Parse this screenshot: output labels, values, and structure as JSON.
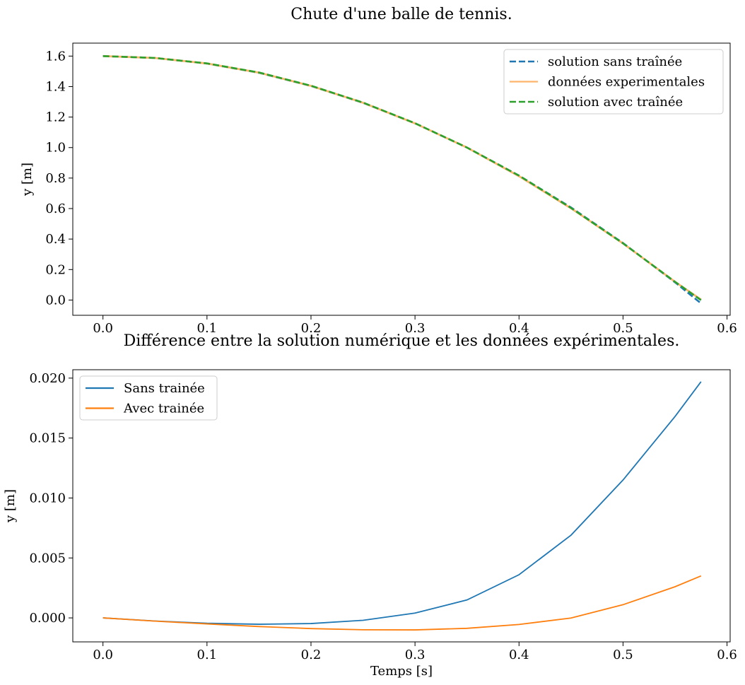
{
  "colors": {
    "blue": "#1f77b4",
    "orange": "#ff7f0e",
    "green": "#2ca02c",
    "light_orange": "#ffb36b"
  },
  "chart_data": [
    {
      "type": "line",
      "title": "Chute d'une balle de tennis.",
      "xlabel": "",
      "ylabel": "y [m]",
      "xlim": [
        -0.029,
        0.603
      ],
      "ylim": [
        -0.1,
        1.685
      ],
      "xticks": [
        0.0,
        0.1,
        0.2,
        0.3,
        0.4,
        0.5,
        0.6
      ],
      "xtick_labels": [
        "0.0",
        "0.1",
        "0.2",
        "0.3",
        "0.4",
        "0.5",
        "0.6"
      ],
      "yticks": [
        0.0,
        0.2,
        0.4,
        0.6,
        0.8,
        1.0,
        1.2,
        1.4,
        1.6
      ],
      "ytick_labels": [
        "0.0",
        "0.2",
        "0.4",
        "0.6",
        "0.8",
        "1.0",
        "1.2",
        "1.4",
        "1.6"
      ],
      "grid": false,
      "legend_position": "upper right",
      "series": [
        {
          "name": "solution sans traînée",
          "style": "dashed",
          "color": "#1f77b4",
          "x": [
            0.0,
            0.05,
            0.1,
            0.15,
            0.2,
            0.25,
            0.3,
            0.35,
            0.4,
            0.45,
            0.5,
            0.55,
            0.575
          ],
          "y": [
            1.6,
            1.588,
            1.551,
            1.49,
            1.404,
            1.293,
            1.159,
            1.0,
            0.816,
            0.607,
            0.374,
            0.116,
            -0.022
          ]
        },
        {
          "name": "données experimentales",
          "style": "solid",
          "color": "#ffb36b",
          "x": [
            0.0,
            0.05,
            0.1,
            0.15,
            0.2,
            0.25,
            0.3,
            0.35,
            0.4,
            0.45,
            0.5,
            0.55,
            0.575
          ],
          "y": [
            1.6,
            1.5875,
            1.5514,
            1.4916,
            1.4046,
            1.2942,
            1.1587,
            1.0,
            0.8123,
            0.6018,
            0.3713,
            0.1197,
            0.003
          ]
        },
        {
          "name": "solution avec traînée",
          "style": "dashed",
          "color": "#2ca02c",
          "x": [
            0.0,
            0.05,
            0.1,
            0.15,
            0.2,
            0.25,
            0.3,
            0.35,
            0.4,
            0.45,
            0.5,
            0.55,
            0.575
          ],
          "y": [
            1.6,
            1.5877,
            1.5519,
            1.4924,
            1.4055,
            1.2951,
            1.1597,
            1.0,
            0.816,
            0.604,
            0.372,
            0.1196,
            -0.0006
          ]
        }
      ]
    },
    {
      "type": "line",
      "title": "Différence entre la solution numérique et les données expérimentales.",
      "xlabel": "Temps [s]",
      "ylabel": "y [m]",
      "xlim": [
        -0.029,
        0.603
      ],
      "ylim": [
        -0.002,
        0.0207
      ],
      "xticks": [
        0.0,
        0.1,
        0.2,
        0.3,
        0.4,
        0.5,
        0.6
      ],
      "xtick_labels": [
        "0.0",
        "0.1",
        "0.2",
        "0.3",
        "0.4",
        "0.5",
        "0.6"
      ],
      "yticks": [
        0.0,
        0.005,
        0.01,
        0.015,
        0.02
      ],
      "ytick_labels": [
        "0.000",
        "0.005",
        "0.010",
        "0.015",
        "0.020"
      ],
      "grid": false,
      "legend_position": "upper left",
      "series": [
        {
          "name": "Sans trainée",
          "style": "solid",
          "color": "#1f77b4",
          "x": [
            0.0,
            0.05,
            0.1,
            0.15,
            0.2,
            0.25,
            0.3,
            0.35,
            0.4,
            0.45,
            0.5,
            0.55,
            0.575
          ],
          "y": [
            0.0,
            -0.00026,
            -0.00045,
            -0.00053,
            -0.00047,
            -0.0002,
            0.0004,
            0.0015,
            0.0036,
            0.0069,
            0.0115,
            0.0168,
            0.0197
          ]
        },
        {
          "name": "Avec trainée",
          "style": "solid",
          "color": "#ff7f0e",
          "x": [
            0.0,
            0.05,
            0.1,
            0.15,
            0.2,
            0.25,
            0.3,
            0.35,
            0.4,
            0.45,
            0.5,
            0.55,
            0.575
          ],
          "y": [
            0.0,
            -0.00027,
            -0.0005,
            -0.00072,
            -0.00089,
            -0.00099,
            -0.001,
            -0.00087,
            -0.00055,
            -1e-05,
            0.0011,
            0.0026,
            0.0035
          ]
        }
      ]
    }
  ]
}
